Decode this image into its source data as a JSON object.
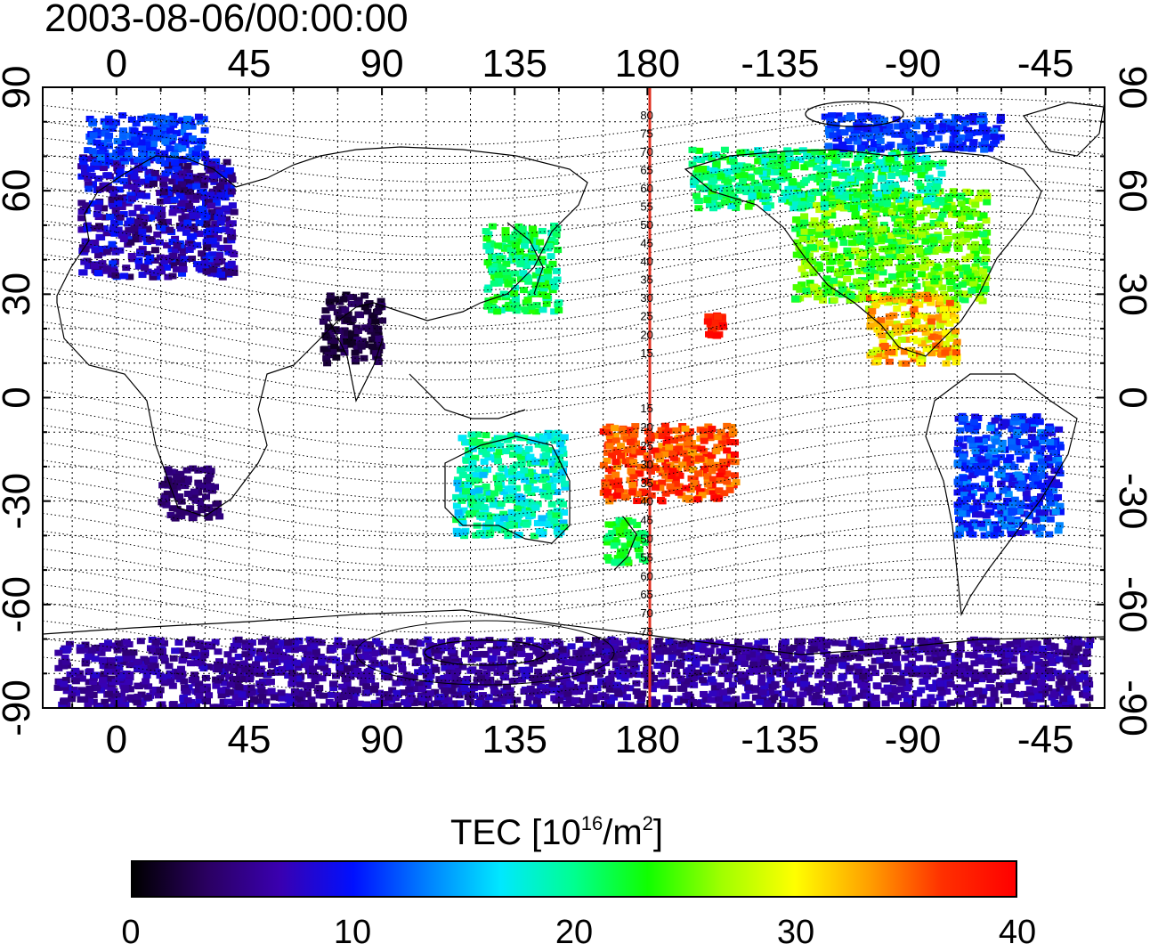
{
  "timestamp": "2003-08-06/00:00:00",
  "map": {
    "projection": "equirectangular",
    "lon_range": [
      -25,
      335
    ],
    "lat_range": [
      -90,
      90
    ],
    "top_lon_ticks": [
      "0",
      "45",
      "90",
      "135",
      "180",
      "-135",
      "-90",
      "-45"
    ],
    "bottom_lon_ticks": [
      "0",
      "45",
      "90",
      "135",
      "180",
      "-135",
      "-90",
      "-45"
    ],
    "left_lat_ticks": [
      "90",
      "60",
      "30",
      "0",
      "-30",
      "-60",
      "-90"
    ],
    "right_lat_ticks": [
      "90",
      "60",
      "30",
      "0",
      "-30",
      "-60",
      "-90"
    ],
    "grid": "dotted, 15° lon / 10° lat",
    "meridian_highlight": {
      "lon": 180,
      "color": "#e03020"
    },
    "magnetic_lat_labels_north": [
      "80",
      "75",
      "70",
      "65",
      "60",
      "55",
      "50",
      "45",
      "40",
      "35",
      "30",
      "25",
      "20",
      "15"
    ],
    "magnetic_lat_labels_south": [
      "15",
      "20",
      "25",
      "30",
      "35",
      "40",
      "45",
      "50",
      "55",
      "60",
      "65",
      "70",
      "75"
    ]
  },
  "colorbar": {
    "title": "TEC  [10",
    "title_sup1": "16",
    "title_mid": "/m",
    "title_sup2": "2",
    "title_end": "]",
    "min": 0,
    "max": 40,
    "tick_labels": [
      "0",
      "10",
      "20",
      "30",
      "40"
    ],
    "colors": [
      "#000000",
      "#2a0060",
      "#3a00b0",
      "#0010ff",
      "#0080ff",
      "#00e8ff",
      "#00ff90",
      "#10ff00",
      "#a0ff00",
      "#ffff00",
      "#ffa000",
      "#ff3000",
      "#ff0000"
    ]
  },
  "tec_regions": [
    {
      "name": "europe",
      "lon": [
        -12,
        40
      ],
      "lat": [
        35,
        70
      ],
      "tec": [
        3,
        11
      ]
    },
    {
      "name": "scandinavia",
      "lon": [
        -10,
        30
      ],
      "lat": [
        68,
        82
      ],
      "tec": [
        9,
        13
      ]
    },
    {
      "name": "east-asia-japan",
      "lon": [
        125,
        150
      ],
      "lat": [
        25,
        50
      ],
      "tec": [
        18,
        24
      ]
    },
    {
      "name": "north-america",
      "lon": [
        -130,
        -65
      ],
      "lat": [
        28,
        60
      ],
      "tec": [
        21,
        28
      ]
    },
    {
      "name": "alaska-canada",
      "lon": [
        -165,
        -80
      ],
      "lat": [
        55,
        72
      ],
      "tec": [
        17,
        24
      ]
    },
    {
      "name": "arctic-canada",
      "lon": [
        -120,
        -60
      ],
      "lat": [
        72,
        82
      ],
      "tec": [
        9,
        13
      ]
    },
    {
      "name": "central-america",
      "lon": [
        -105,
        -75
      ],
      "lat": [
        10,
        30
      ],
      "tec": [
        27,
        36
      ]
    },
    {
      "name": "hawaii",
      "lon": [
        -160,
        -154
      ],
      "lat": [
        18,
        24
      ],
      "tec": [
        37,
        40
      ]
    },
    {
      "name": "south-pacific",
      "lon": [
        165,
        210
      ],
      "lat": [
        -30,
        -8
      ],
      "tec": [
        33,
        40
      ]
    },
    {
      "name": "australia",
      "lon": [
        115,
        152
      ],
      "lat": [
        -40,
        -10
      ],
      "tec": [
        15,
        22
      ]
    },
    {
      "name": "new-zealand",
      "lon": [
        166,
        180
      ],
      "lat": [
        -48,
        -35
      ],
      "tec": [
        20,
        24
      ]
    },
    {
      "name": "south-africa",
      "lon": [
        15,
        35
      ],
      "lat": [
        -35,
        -20
      ],
      "tec": [
        3,
        5
      ]
    },
    {
      "name": "india",
      "lon": [
        70,
        90
      ],
      "lat": [
        10,
        30
      ],
      "tec": [
        1,
        4
      ]
    },
    {
      "name": "south-america",
      "lon": [
        -75,
        -40
      ],
      "lat": [
        -40,
        -5
      ],
      "tec": [
        8,
        14
      ]
    },
    {
      "name": "antarctica",
      "lon": [
        -20,
        330
      ],
      "lat": [
        -90,
        -70
      ],
      "tec": [
        4,
        8
      ]
    }
  ]
}
